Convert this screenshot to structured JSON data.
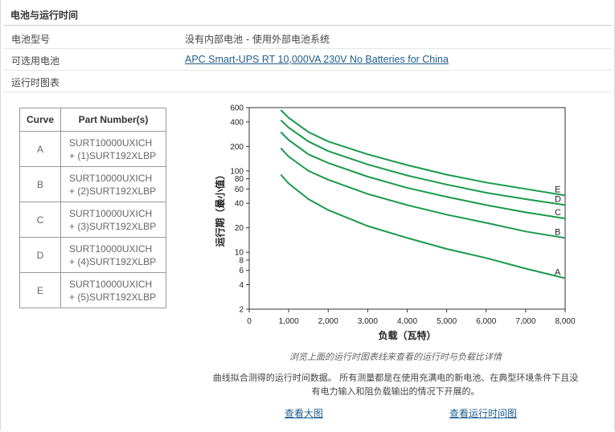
{
  "section": {
    "title": "电池与运行时间"
  },
  "rows": {
    "model_label": "电池型号",
    "model_value": "没有内部电池 - 使用外部电池系统",
    "optional_label": "可选用电池",
    "optional_link": "APC Smart-UPS RT 10,000VA 230V No Batteries for China",
    "chart_label": "运行时图表"
  },
  "table": {
    "headers": [
      "Curve",
      "Part Number(s)"
    ],
    "rows": [
      {
        "curve": "A",
        "part_line1": "SURT10000UXICH",
        "part_line2": "+ (1)SURT192XLBP"
      },
      {
        "curve": "B",
        "part_line1": "SURT10000UXICH",
        "part_line2": "+ (2)SURT192XLBP"
      },
      {
        "curve": "C",
        "part_line1": "SURT10000UXICH",
        "part_line2": "+ (3)SURT192XLBP"
      },
      {
        "curve": "D",
        "part_line1": "SURT10000UXICH",
        "part_line2": "+ (4)SURT192XLBP"
      },
      {
        "curve": "E",
        "part_line1": "SURT10000UXICH",
        "part_line2": "+ (5)SURT192XLBP"
      }
    ]
  },
  "chart_data": {
    "type": "line",
    "title": "",
    "xlabel": "负载（瓦特）",
    "ylabel": "运行期（最小值）",
    "xlim": [
      0,
      8000
    ],
    "ylim": [
      2,
      600
    ],
    "y_scale": "log",
    "x_ticks": [
      "0",
      "1,000",
      "2,000",
      "3,000",
      "4,000",
      "5,000",
      "6,000",
      "7,000",
      "8,000"
    ],
    "x_tick_values": [
      0,
      1000,
      2000,
      3000,
      4000,
      5000,
      6000,
      7000,
      8000
    ],
    "y_ticks": [
      "2",
      "4",
      "6",
      "8",
      "10",
      "20",
      "40",
      "60",
      "80",
      "100",
      "200",
      "400",
      "600"
    ],
    "y_tick_values": [
      2,
      4,
      6,
      8,
      10,
      20,
      40,
      60,
      80,
      100,
      200,
      400,
      600
    ],
    "grid": false,
    "line_color": "#1a9a4a",
    "series": [
      {
        "name": "A",
        "x": [
          800,
          1000,
          1500,
          2000,
          3000,
          4000,
          5000,
          6000,
          7000,
          8000
        ],
        "y": [
          90,
          70,
          45,
          33,
          21,
          15,
          11,
          8.5,
          6.3,
          4.8
        ]
      },
      {
        "name": "B",
        "x": [
          800,
          1000,
          1500,
          2000,
          3000,
          4000,
          5000,
          6000,
          7000,
          8000
        ],
        "y": [
          190,
          150,
          100,
          78,
          52,
          38,
          29,
          23,
          18,
          15
        ]
      },
      {
        "name": "C",
        "x": [
          800,
          1000,
          1500,
          2000,
          3000,
          4000,
          5000,
          6000,
          7000,
          8000
        ],
        "y": [
          300,
          240,
          160,
          125,
          85,
          62,
          48,
          38,
          31,
          26
        ]
      },
      {
        "name": "D",
        "x": [
          800,
          1000,
          1500,
          2000,
          3000,
          4000,
          5000,
          6000,
          7000,
          8000
        ],
        "y": [
          420,
          340,
          230,
          175,
          120,
          88,
          68,
          54,
          45,
          38
        ]
      },
      {
        "name": "E",
        "x": [
          800,
          1000,
          1500,
          2000,
          3000,
          4000,
          5000,
          6000,
          7000,
          8000
        ],
        "y": [
          560,
          450,
          300,
          230,
          160,
          118,
          90,
          72,
          60,
          50
        ]
      }
    ]
  },
  "captions": {
    "hint": "浏览上面的运行时图表线来查看的运行时与负载比详情",
    "note": "曲线拟合测得的运行时间数据。 所有测量都是在使用充满电的新电池、在典型环境条件下且没有电力输入和阻负载输出的情况下开展的。"
  },
  "links": {
    "large_image": "查看大图",
    "runtime_chart": "查看运行时间图"
  }
}
